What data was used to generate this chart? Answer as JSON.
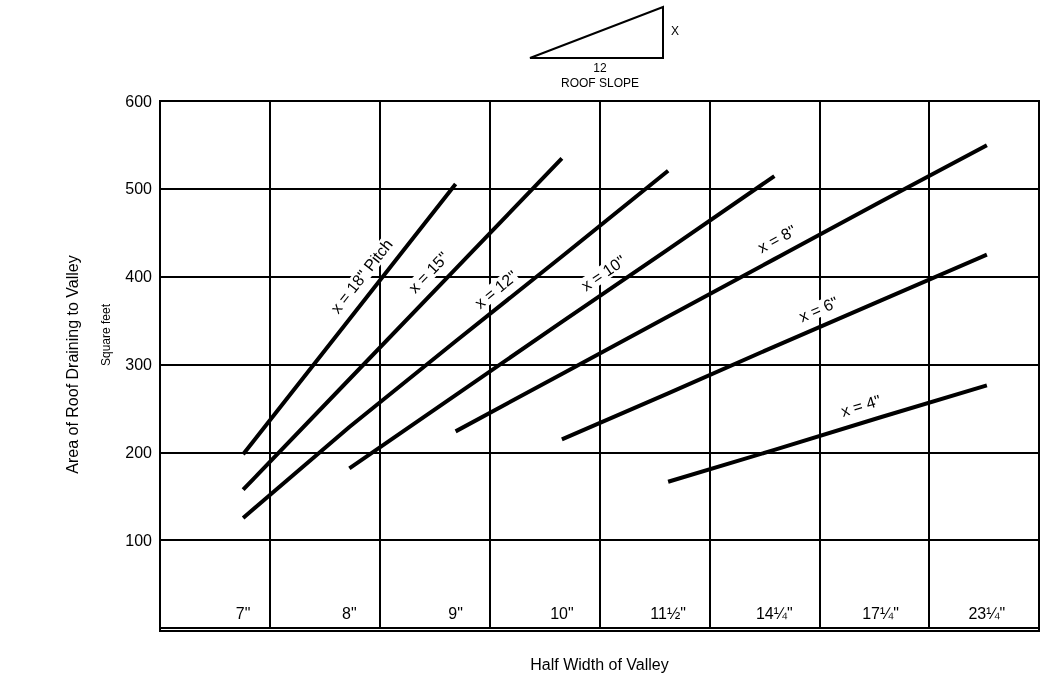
{
  "chart_data": {
    "type": "line",
    "xlabel": "Half Width of Valley",
    "ylabel": "Area of Roof Draining to Valley",
    "annotations": [
      "X",
      "12",
      "ROOF SLOPE",
      "Square feet"
    ],
    "categories": [
      "7\"",
      "8\"",
      "9\"",
      "10\"",
      "11½\"",
      "14¼\"",
      "17¼\"",
      "23¼\""
    ],
    "series": [
      {
        "name": "x = 18\" Pitch",
        "color": "#000000",
        "values": [
          200,
          353,
          506,
          null,
          null,
          null,
          null,
          null
        ]
      },
      {
        "name": "x = 15\"",
        "color": "#000000",
        "values": [
          160,
          285,
          410,
          535,
          null,
          null,
          null,
          null
        ]
      },
      {
        "name": "x = 12\"",
        "color": "#000000",
        "values": [
          128,
          231,
          328,
          424,
          521,
          null,
          null,
          null
        ]
      },
      {
        "name": "x = 10\"",
        "color": "#000000",
        "values": [
          null,
          184,
          267,
          350,
          432,
          515,
          null,
          null
        ]
      },
      {
        "name": "x = 8\"",
        "color": "#000000",
        "values": [
          null,
          null,
          226,
          291,
          356,
          421,
          486,
          550
        ]
      },
      {
        "name": "x = 6\"",
        "color": "#000000",
        "values": [
          null,
          null,
          null,
          217,
          269,
          322,
          374,
          426
        ]
      },
      {
        "name": "x = 4\"",
        "color": "#000000",
        "values": [
          null,
          null,
          null,
          null,
          169,
          205,
          242,
          278
        ]
      }
    ],
    "ylim": [
      0,
      600
    ],
    "yticks": [
      {
        "value": 0,
        "label": null
      },
      100,
      200,
      300,
      400,
      500,
      600
    ],
    "grid": true,
    "legend": false,
    "marker": "none",
    "line_style": "solid"
  }
}
